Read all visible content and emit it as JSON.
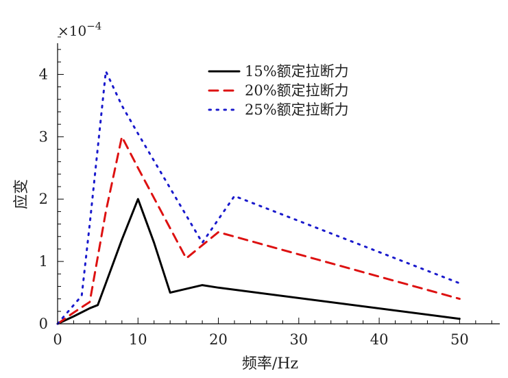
{
  "chart_data": {
    "type": "line",
    "title": "",
    "xlabel": "频率/Hz",
    "ylabel": "应变",
    "scale_note": {
      "prefix": "×10",
      "exponent": "−4"
    },
    "xlim": [
      0,
      55
    ],
    "ylim": [
      0,
      4.5
    ],
    "xticks": [
      0,
      10,
      20,
      30,
      40,
      50
    ],
    "yticks": [
      0,
      1,
      2,
      3,
      4
    ],
    "grid": false,
    "legend_position": "top-right",
    "series": [
      {
        "name": "15%额定拉断力",
        "color": "#000000",
        "style": "solid",
        "x": [
          0,
          2,
          4,
          5,
          6,
          8,
          10,
          12,
          14,
          15,
          16,
          18,
          20,
          50
        ],
        "y": [
          0,
          0.12,
          0.25,
          0.3,
          0.65,
          1.35,
          2.0,
          1.3,
          0.5,
          0.53,
          0.56,
          0.62,
          0.58,
          0.08
        ]
      },
      {
        "name": "20%额定拉断力",
        "color": "#dd1111",
        "style": "dashed",
        "x": [
          0,
          2,
          4,
          6,
          8,
          10,
          16,
          20,
          50
        ],
        "y": [
          0,
          0.18,
          0.35,
          1.8,
          3.0,
          2.5,
          1.05,
          1.47,
          0.4
        ]
      },
      {
        "name": "25%额定拉断力",
        "color": "#1a1acc",
        "style": "dotted",
        "x": [
          0,
          2,
          3,
          4,
          6,
          8,
          10,
          18,
          22,
          50
        ],
        "y": [
          0,
          0.3,
          0.45,
          1.6,
          4.05,
          3.5,
          3.05,
          1.3,
          2.05,
          0.65
        ]
      }
    ]
  }
}
